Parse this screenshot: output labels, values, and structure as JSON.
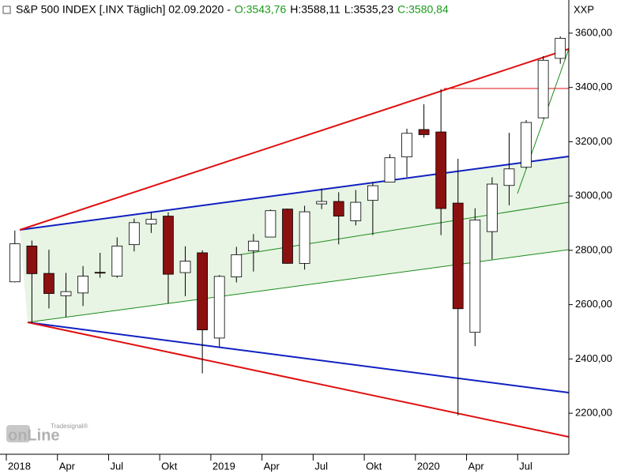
{
  "chart_data": {
    "type": "candlestick",
    "title": "S&P 500 INDEX [.INX  Täglich] 02.09.2020 -",
    "quote": {
      "open": "O:3543,76",
      "high": "H:3588,11",
      "low": "L:3535,23",
      "close": "C:3580,84"
    },
    "axis_label": "XXP",
    "brand": {
      "name": "onLine",
      "sub": "Tradesignal®"
    },
    "categories": [
      "2018",
      null,
      null,
      "Apr",
      null,
      null,
      "Jul",
      null,
      null,
      "Okt",
      null,
      null,
      "2019",
      null,
      null,
      "Apr",
      null,
      null,
      "Jul",
      null,
      null,
      "Okt",
      null,
      null,
      "2020",
      null,
      null,
      "Apr",
      null,
      null,
      "Jul",
      null,
      null
    ],
    "open": [
      2684,
      2816,
      2715,
      2633,
      2643,
      2719,
      2705,
      2821,
      2897,
      2926,
      2718,
      2791,
      2477,
      2702,
      2798,
      2849,
      2952,
      2752,
      2971,
      2980,
      2909,
      2984,
      3051,
      3144,
      3245,
      3236,
      2974,
      2498,
      2869,
      3039,
      3106,
      3288,
      3507
    ],
    "high": [
      2873,
      2836,
      2802,
      2717,
      2742,
      2791,
      2848,
      2917,
      2941,
      2940,
      2815,
      2800,
      2709,
      2813,
      2860,
      2950,
      2954,
      2964,
      3028,
      3014,
      3022,
      3050,
      3154,
      3248,
      3338,
      3394,
      3137,
      2955,
      3069,
      3233,
      3280,
      3515,
      3588
    ],
    "low": [
      2682,
      2533,
      2586,
      2554,
      2595,
      2699,
      2699,
      2796,
      2864,
      2604,
      2631,
      2347,
      2444,
      2682,
      2722,
      2849,
      2751,
      2729,
      2952,
      2822,
      2892,
      2856,
      3051,
      3070,
      3215,
      2856,
      2192,
      2447,
      2767,
      2966,
      3101,
      3285,
      3487
    ],
    "close": [
      2824,
      2714,
      2641,
      2648,
      2705,
      2718,
      2816,
      2902,
      2914,
      2712,
      2760,
      2507,
      2704,
      2784,
      2834,
      2946,
      2752,
      2942,
      2980,
      2926,
      2977,
      3038,
      3141,
      3231,
      3226,
      2954,
      2585,
      2912,
      3044,
      3100,
      3271,
      3500,
      3581
    ],
    "up_color": "#ffffff",
    "down_color": "#8b1010",
    "ylim": [
      2049,
      3722
    ],
    "yticks": [
      {
        "value": 2200,
        "label": "2200,00"
      },
      {
        "value": 2400,
        "label": "2400,00"
      },
      {
        "value": 2600,
        "label": "2600,00"
      },
      {
        "value": 2800,
        "label": "2800,00"
      },
      {
        "value": 3000,
        "label": "3000,00"
      },
      {
        "value": 3200,
        "label": "3200,00"
      },
      {
        "value": 3400,
        "label": "3400,00"
      },
      {
        "value": 3600,
        "label": "3600,00"
      }
    ]
  }
}
